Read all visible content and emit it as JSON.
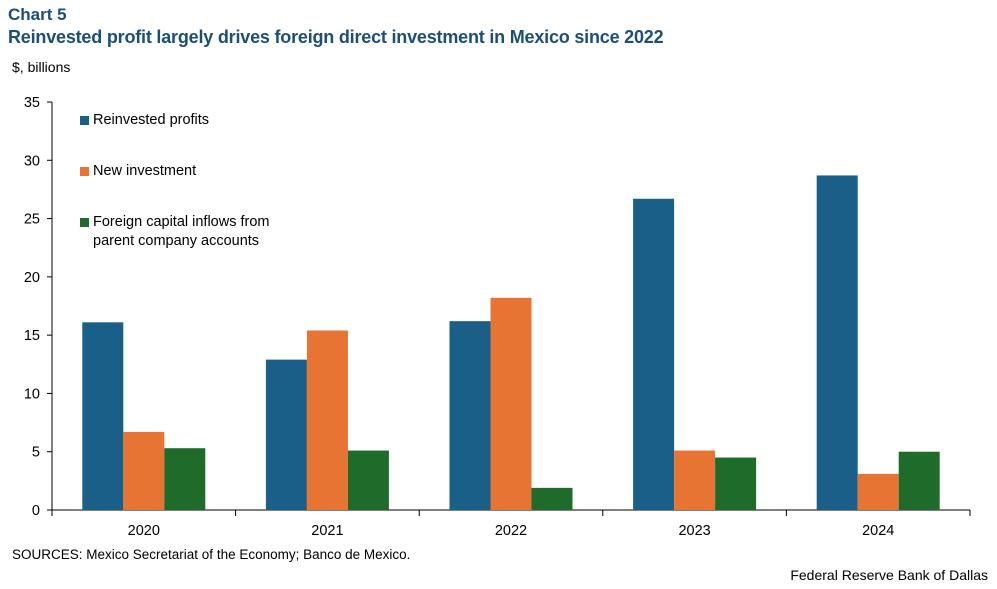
{
  "header": {
    "chart_label": "Chart 5",
    "title": "Reinvested profit largely drives foreign direct investment in Mexico since 2022"
  },
  "footer": {
    "sources": "SOURCES: Mexico Secretariat of the Economy; Banco de Mexico.",
    "credit": "Federal Reserve Bank of Dallas"
  },
  "chart_data": {
    "type": "bar",
    "ylabel": "$, billions",
    "ylim": [
      0,
      35
    ],
    "yticks": [
      0,
      5,
      10,
      15,
      20,
      25,
      30,
      35
    ],
    "categories": [
      "2020",
      "2021",
      "2022",
      "2023",
      "2024"
    ],
    "legend_position": "top-left",
    "grid": false,
    "series": [
      {
        "name": "Reinvested profits",
        "color": "#1a5f87",
        "values": [
          16.1,
          12.9,
          16.2,
          26.7,
          28.7
        ]
      },
      {
        "name": "New investment",
        "color": "#e87433",
        "values": [
          6.7,
          15.4,
          18.2,
          5.1,
          3.1
        ]
      },
      {
        "name": "Foreign capital inflows from\nparent company accounts",
        "color": "#1e6b2a",
        "values": [
          5.3,
          5.1,
          1.9,
          4.5,
          5.0
        ]
      }
    ]
  }
}
